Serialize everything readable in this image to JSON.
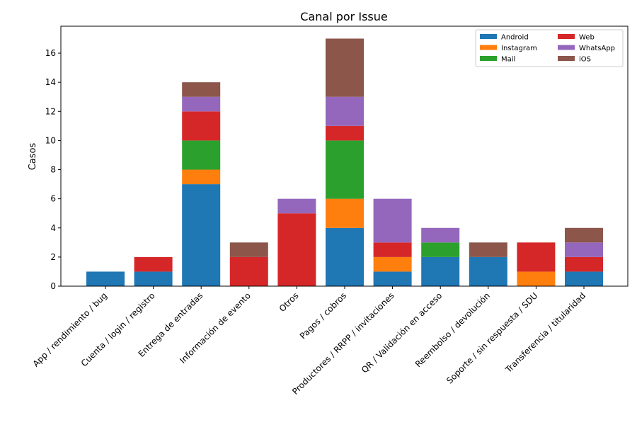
{
  "chart_data": {
    "type": "bar",
    "stacked": true,
    "title": "Canal por Issue",
    "xlabel": "",
    "ylabel": "Casos",
    "ylim": [
      0,
      17.85
    ],
    "yticks": [
      0,
      2,
      4,
      6,
      8,
      10,
      12,
      14,
      16
    ],
    "grid": false,
    "legend_position": "top-right",
    "legend_columns": 2,
    "categories": [
      "App / rendimiento / bug",
      "Cuenta / login / registro",
      "Entrega de entradas",
      "Información de evento",
      "Otros",
      "Pagos / cobros",
      "Productores / RRPP / invitaciones",
      "QR / Validación en acceso",
      "Reembolso / devolución",
      "Soporte / sin respuesta / SDU",
      "Transferencia / titularidad"
    ],
    "series": [
      {
        "name": "Android",
        "color": "#1f77b4",
        "values": [
          1,
          1,
          7,
          0,
          0,
          4,
          1,
          2,
          2,
          0,
          1
        ]
      },
      {
        "name": "Instagram",
        "color": "#ff7f0e",
        "values": [
          0,
          0,
          1,
          0,
          0,
          2,
          1,
          0,
          0,
          1,
          0
        ]
      },
      {
        "name": "Mail",
        "color": "#2ca02c",
        "values": [
          0,
          0,
          2,
          0,
          0,
          4,
          0,
          1,
          0,
          0,
          0
        ]
      },
      {
        "name": "Web",
        "color": "#d62728",
        "values": [
          0,
          1,
          2,
          2,
          5,
          1,
          1,
          0,
          0,
          2,
          1
        ]
      },
      {
        "name": "WhatsApp",
        "color": "#9467bd",
        "values": [
          0,
          0,
          1,
          0,
          1,
          2,
          3,
          1,
          0,
          0,
          1
        ]
      },
      {
        "name": "iOS",
        "color": "#8c564b",
        "values": [
          0,
          0,
          1,
          1,
          0,
          4,
          0,
          0,
          1,
          0,
          1
        ]
      }
    ]
  }
}
